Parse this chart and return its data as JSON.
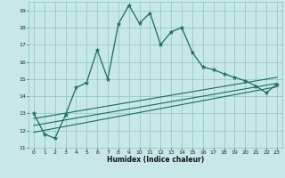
{
  "xlabel": "Humidex (Indice chaleur)",
  "bg_color": "#c8e8e8",
  "grid_color": "#88c4c4",
  "line_color": "#1a6b5a",
  "xlim": [
    -0.5,
    23.5
  ],
  "ylim": [
    11,
    19.5
  ],
  "xticks": [
    0,
    1,
    2,
    3,
    4,
    5,
    6,
    7,
    8,
    9,
    10,
    11,
    12,
    13,
    14,
    15,
    16,
    17,
    18,
    19,
    20,
    21,
    22,
    23
  ],
  "yticks": [
    11,
    12,
    13,
    14,
    15,
    16,
    17,
    18,
    19
  ],
  "line1_x": [
    0,
    1,
    2,
    3,
    4,
    5,
    6,
    7,
    8,
    9,
    10,
    11,
    12,
    13,
    14,
    15,
    16,
    17,
    18,
    19,
    20,
    21,
    22,
    23
  ],
  "line1_y": [
    13.0,
    11.8,
    11.55,
    12.9,
    14.5,
    14.8,
    16.7,
    15.0,
    18.2,
    19.3,
    18.25,
    18.85,
    17.0,
    17.75,
    18.0,
    16.55,
    15.7,
    15.55,
    15.3,
    15.1,
    14.9,
    14.6,
    14.2,
    14.7
  ],
  "line2_x": [
    0,
    23
  ],
  "line2_y": [
    11.9,
    14.55
  ],
  "line3_x": [
    0,
    23
  ],
  "line3_y": [
    12.3,
    14.75
  ],
  "line4_x": [
    0,
    23
  ],
  "line4_y": [
    12.7,
    15.1
  ]
}
